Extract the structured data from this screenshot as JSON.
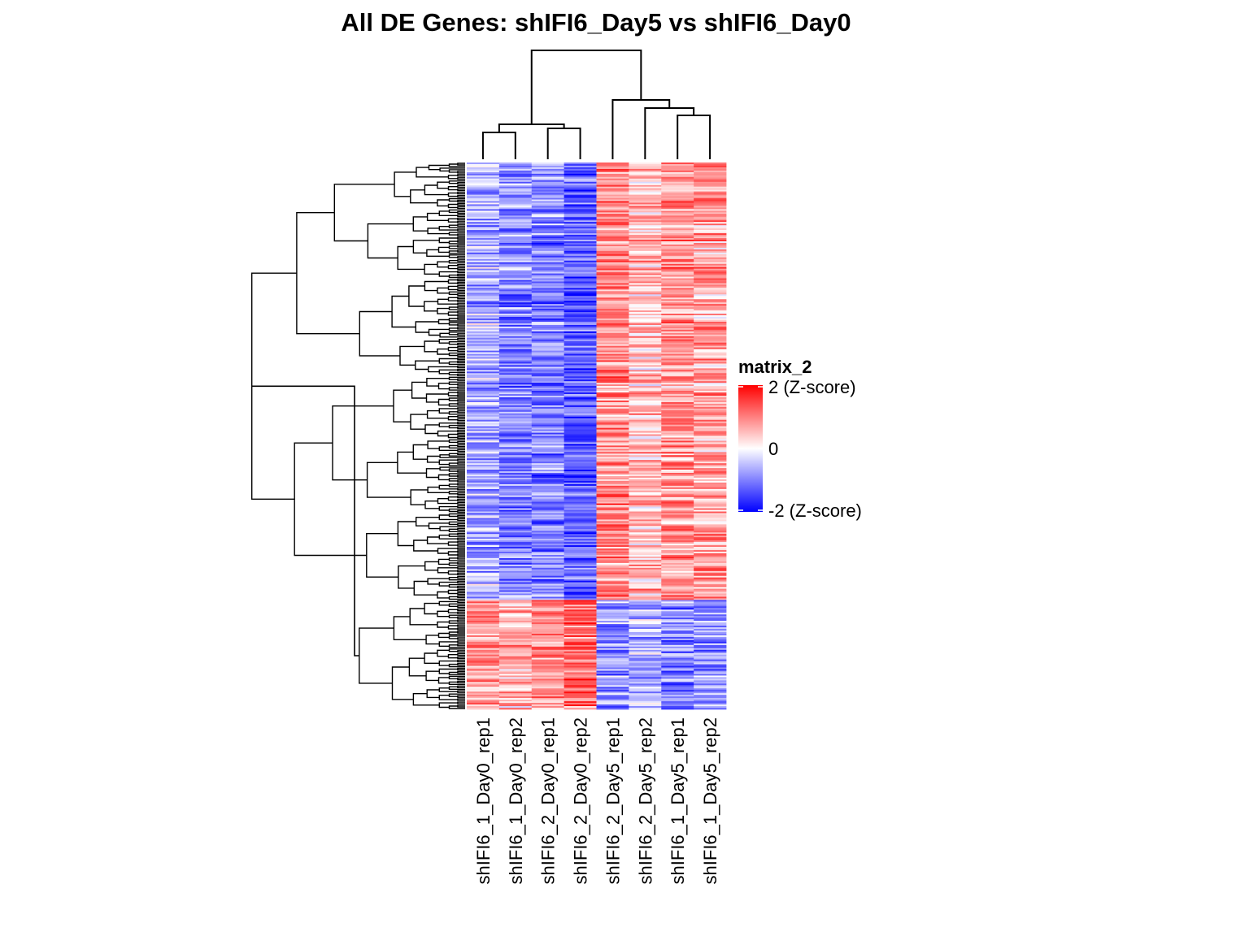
{
  "chart_data": {
    "type": "heatmap",
    "title": "All DE Genes: shIFI6_Day5  vs  shIFI6_Day0",
    "columns": [
      "shIFI6_1_Day0_rep1",
      "shIFI6_1_Day0_rep2",
      "shIFI6_2_Day0_rep1",
      "shIFI6_2_Day0_rep2",
      "shIFI6_2_Day5_rep1",
      "shIFI6_2_Day5_rep2",
      "shIFI6_1_Day5_rep1",
      "shIFI6_1_Day5_rep2"
    ],
    "row_blocks": [
      {
        "fraction": 0.8,
        "mean_z": [
          -0.6,
          -0.9,
          -1.0,
          -1.3,
          0.9,
          0.5,
          0.8,
          0.7
        ]
      },
      {
        "fraction": 0.2,
        "mean_z": [
          0.7,
          0.6,
          0.8,
          1.1,
          -0.8,
          -0.7,
          -1.0,
          -0.9
        ]
      }
    ],
    "color_scale": {
      "min": -2,
      "mid": 0,
      "max": 2,
      "low_color": "#0000ff",
      "mid_color": "#ffffff",
      "high_color": "#ff0000"
    },
    "legend": {
      "title": "matrix_2",
      "ticks": [
        {
          "value": 2,
          "label": "2 (Z-score)"
        },
        {
          "value": 0,
          "label": "0"
        },
        {
          "value": -2,
          "label": "-2 (Z-score)"
        }
      ]
    },
    "column_dendrogram": true,
    "row_dendrogram": true
  }
}
